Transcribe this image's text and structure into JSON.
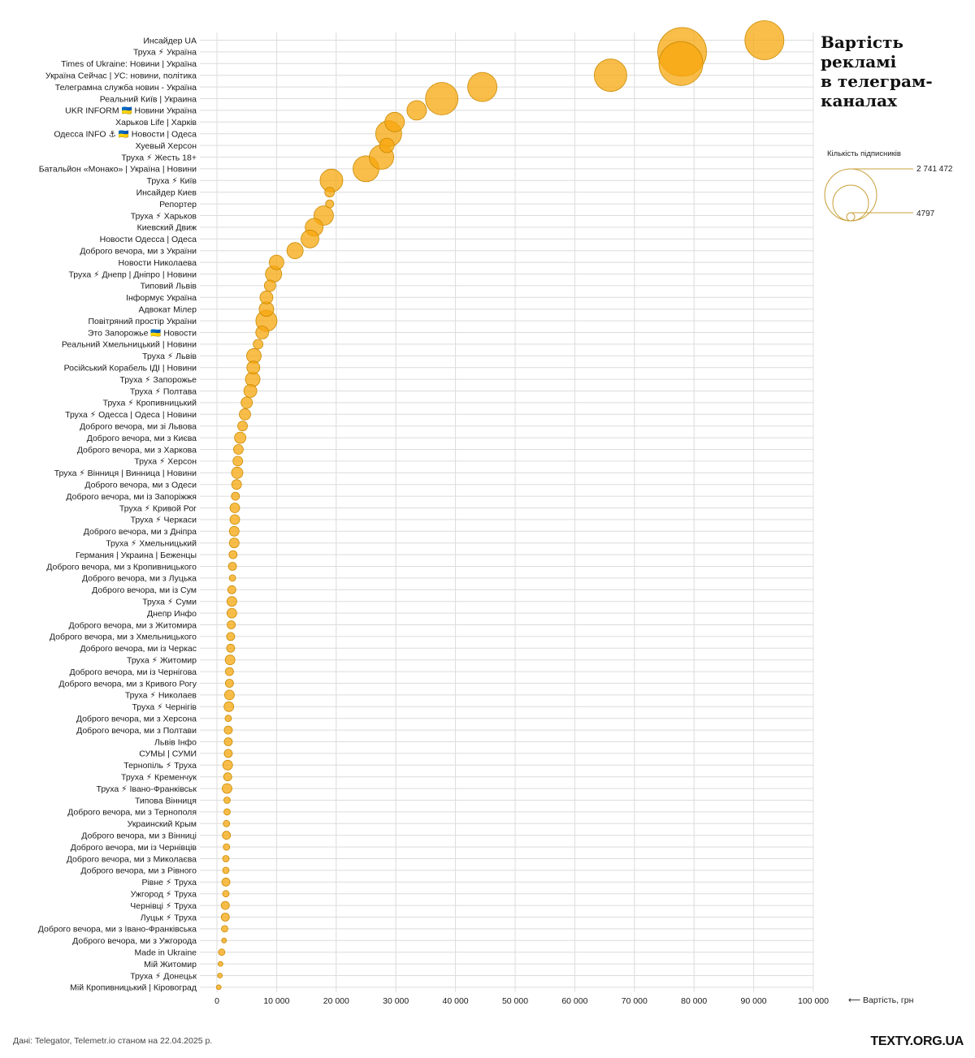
{
  "title": "Вартість реклами в телеграм-каналах",
  "title_lines": [
    "Вартість",
    "рекламі",
    "в телеграм-",
    "каналах"
  ],
  "legend": {
    "title": "Кількість підписників",
    "max_label": "2 741 472",
    "min_label": "4797",
    "max_value": 2741472,
    "min_value": 4797
  },
  "x_unit": "⟵ Вартість, грн",
  "source": "Дані: Telegator, Telemetr.io станом на 22.04.2025 р.",
  "brand": "TEXTY.ORG.UA",
  "colors": {
    "bubble": "#f7a70e",
    "bubble_stroke": "#c98a00",
    "grid": "#dcdcdc",
    "legend": "#c9a13b"
  },
  "chart_data": {
    "type": "scatter",
    "title": "Вартість реклами в телеграм-каналах",
    "xlabel": "Вартість, грн",
    "xlim": [
      0,
      100000
    ],
    "x_ticks": [
      "0",
      "10 000",
      "20 000",
      "30 000",
      "40 000",
      "50 000",
      "60 000",
      "70 000",
      "80 000",
      "90 000",
      "100 000"
    ],
    "x_tick_values": [
      0,
      10000,
      20000,
      30000,
      40000,
      50000,
      60000,
      70000,
      80000,
      90000,
      100000
    ],
    "grid": true,
    "size_variable": "Кількість підписників",
    "points": [
      {
        "label": "Инсайдер UA",
        "x": 91800,
        "r": 24
      },
      {
        "label": "Труха ⚡ Україна",
        "x": 78000,
        "r": 30
      },
      {
        "label": "Times of Ukraine: Новини | Україна",
        "x": 77800,
        "r": 27
      },
      {
        "label": "Україна Сейчас | УС: новини, політика",
        "x": 66000,
        "r": 20
      },
      {
        "label": "Телеграмна служба новин - Україна",
        "x": 44500,
        "r": 18
      },
      {
        "label": "Реальний Київ | Украина",
        "x": 37700,
        "r": 20
      },
      {
        "label": "UKR INFORM 🇺🇦 Новини Україна",
        "x": 33500,
        "r": 12
      },
      {
        "label": "Харьков Life | Харків",
        "x": 29800,
        "r": 12
      },
      {
        "label": "Одесса INFO ⚓ 🇺🇦 Новости | Одеса",
        "x": 28800,
        "r": 16
      },
      {
        "label": "Хуевый Херсон",
        "x": 28500,
        "r": 9
      },
      {
        "label": "Труха ⚡ Жесть 18+",
        "x": 27600,
        "r": 15
      },
      {
        "label": "Батальйон «Монако» | Україна | Новини",
        "x": 25000,
        "r": 16
      },
      {
        "label": "Труха ⚡ Київ",
        "x": 19200,
        "r": 14
      },
      {
        "label": "Инсайдер Киев",
        "x": 18900,
        "r": 6
      },
      {
        "label": "Репортер",
        "x": 18900,
        "r": 5
      },
      {
        "label": "Труха ⚡ Харьков",
        "x": 17900,
        "r": 12
      },
      {
        "label": "Киевский Движ",
        "x": 16300,
        "r": 11
      },
      {
        "label": "Новости Одесса | Одеса",
        "x": 15600,
        "r": 11
      },
      {
        "label": "Доброго вечора, ми з України",
        "x": 13100,
        "r": 10
      },
      {
        "label": "Новости Николаева",
        "x": 10000,
        "r": 9
      },
      {
        "label": "Труха ⚡ Днепр | Дніпро | Новини",
        "x": 9500,
        "r": 10
      },
      {
        "label": "Типовий Львів",
        "x": 8900,
        "r": 7
      },
      {
        "label": "Інформує Україна",
        "x": 8300,
        "r": 8
      },
      {
        "label": "Адвокат Мілер",
        "x": 8300,
        "r": 9
      },
      {
        "label": "Повітряний простір України",
        "x": 8300,
        "r": 13
      },
      {
        "label": "Это Запорожье 🇺🇦 Новости",
        "x": 7600,
        "r": 8
      },
      {
        "label": "Реальний Хмельницький | Новини",
        "x": 6900,
        "r": 6
      },
      {
        "label": "Труха ⚡ Львів",
        "x": 6200,
        "r": 9
      },
      {
        "label": "Російський Корабель ІДІ | Новини",
        "x": 6100,
        "r": 8
      },
      {
        "label": "Труха ⚡ Запорожье",
        "x": 6000,
        "r": 9
      },
      {
        "label": "Труха ⚡ Полтава",
        "x": 5600,
        "r": 8
      },
      {
        "label": "Труха ⚡ Кропивницький",
        "x": 5000,
        "r": 7
      },
      {
        "label": "Труха ⚡ Одесса | Одеса | Новини",
        "x": 4700,
        "r": 7
      },
      {
        "label": "Доброго вечора, ми зі Львова",
        "x": 4300,
        "r": 6
      },
      {
        "label": "Доброго вечора, ми з Києва",
        "x": 3900,
        "r": 7
      },
      {
        "label": "Доброго вечора, ми з Харкова",
        "x": 3600,
        "r": 6
      },
      {
        "label": "Труха ⚡ Херсон",
        "x": 3500,
        "r": 6
      },
      {
        "label": "Труха ⚡ Вінниця | Винница | Новини",
        "x": 3400,
        "r": 7
      },
      {
        "label": "Доброго вечора, ми з Одеси",
        "x": 3300,
        "r": 6
      },
      {
        "label": "Доброго вечора, ми із Запоріжжя",
        "x": 3100,
        "r": 5
      },
      {
        "label": "Труха ⚡ Кривой Рог",
        "x": 3000,
        "r": 6
      },
      {
        "label": "Труха ⚡ Черкаси",
        "x": 3000,
        "r": 6
      },
      {
        "label": "Доброго вечора, ми з Дніпра",
        "x": 2900,
        "r": 6
      },
      {
        "label": "Труха ⚡ Хмельницький",
        "x": 2900,
        "r": 6
      },
      {
        "label": "Германия | Украина | Беженцы",
        "x": 2700,
        "r": 5
      },
      {
        "label": "Доброго вечора, ми з Кропивницького",
        "x": 2600,
        "r": 5
      },
      {
        "label": "Доброго вечора, ми з Луцька",
        "x": 2600,
        "r": 4
      },
      {
        "label": "Доброго вечора, ми із Сум",
        "x": 2500,
        "r": 5
      },
      {
        "label": "Труха ⚡ Суми",
        "x": 2500,
        "r": 6
      },
      {
        "label": "Днепр Инфо",
        "x": 2500,
        "r": 6
      },
      {
        "label": "Доброго вечора, ми з Житомира",
        "x": 2400,
        "r": 5
      },
      {
        "label": "Доброго вечора, ми з Хмельницького",
        "x": 2300,
        "r": 5
      },
      {
        "label": "Доброго вечора, ми із Черкас",
        "x": 2300,
        "r": 5
      },
      {
        "label": "Труха ⚡ Житомир",
        "x": 2200,
        "r": 6
      },
      {
        "label": "Доброго вечора, ми із Чернігова",
        "x": 2100,
        "r": 5
      },
      {
        "label": "Доброго вечора, ми з Кривого Рогу",
        "x": 2100,
        "r": 5
      },
      {
        "label": "Труха ⚡ Николаев",
        "x": 2100,
        "r": 6
      },
      {
        "label": "Труха ⚡ Чернігів",
        "x": 2000,
        "r": 6
      },
      {
        "label": "Доброго вечора, ми з Херсона",
        "x": 1900,
        "r": 4
      },
      {
        "label": "Доброго вечора, ми з Полтави",
        "x": 1900,
        "r": 5
      },
      {
        "label": "Львів Інфо",
        "x": 1900,
        "r": 5
      },
      {
        "label": "СУМЫ | СУМИ",
        "x": 1900,
        "r": 5
      },
      {
        "label": "Тернопіль ⚡ Труха",
        "x": 1800,
        "r": 6
      },
      {
        "label": "Труха ⚡ Кременчук",
        "x": 1800,
        "r": 5
      },
      {
        "label": "Труха ⚡ Івано-Франківськ",
        "x": 1700,
        "r": 6
      },
      {
        "label": "Типова Вінниця",
        "x": 1700,
        "r": 4
      },
      {
        "label": "Доброго вечора, ми з Тернополя",
        "x": 1700,
        "r": 4
      },
      {
        "label": "Украинский Крым",
        "x": 1600,
        "r": 4
      },
      {
        "label": "Доброго вечора, ми з Вінниці",
        "x": 1600,
        "r": 5
      },
      {
        "label": "Доброго вечора, ми із Чернівців",
        "x": 1600,
        "r": 4
      },
      {
        "label": "Доброго вечора, ми з Миколаєва",
        "x": 1500,
        "r": 4
      },
      {
        "label": "Доброго вечора, ми з Рівного",
        "x": 1500,
        "r": 4
      },
      {
        "label": "Рівне ⚡ Труха",
        "x": 1500,
        "r": 5
      },
      {
        "label": "Ужгород ⚡ Труха",
        "x": 1500,
        "r": 4
      },
      {
        "label": "Чернівці ⚡ Труха",
        "x": 1400,
        "r": 5
      },
      {
        "label": "Луцьк ⚡ Труха",
        "x": 1400,
        "r": 5
      },
      {
        "label": "Доброго вечора, ми з Івано-Франківська",
        "x": 1300,
        "r": 4
      },
      {
        "label": "Доброго вечора, ми з Ужгорода",
        "x": 1200,
        "r": 3
      },
      {
        "label": "Made in Ukraine",
        "x": 800,
        "r": 4
      },
      {
        "label": "Мій Житомир",
        "x": 600,
        "r": 3
      },
      {
        "label": "Труха ⚡ Донецьк",
        "x": 500,
        "r": 3
      },
      {
        "label": "Мій Кропивницький | Кіровоград",
        "x": 300,
        "r": 3
      }
    ]
  }
}
